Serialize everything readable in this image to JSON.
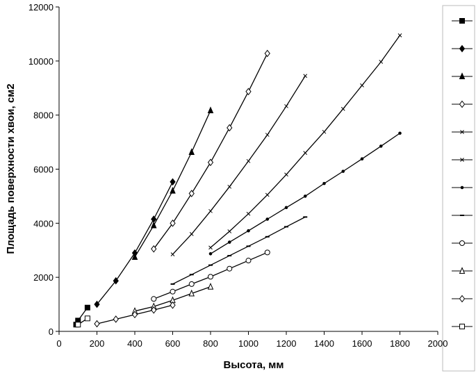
{
  "chart_data": {
    "type": "line",
    "x_label": "Высота, мм",
    "y_label": "Площадь поверхности хвои, см2",
    "xlim": [
      0,
      2000
    ],
    "xticks": [
      0,
      200,
      400,
      600,
      800,
      1000,
      1200,
      1400,
      1600,
      1800,
      2000
    ],
    "ylim": [
      0,
      12000
    ],
    "yticks": [
      0,
      2000,
      4000,
      6000,
      8000,
      10000,
      12000
    ],
    "grid": false,
    "legend": "right",
    "series": [
      {
        "color": "#000000",
        "marker": "square-filled",
        "x": [
          90,
          100,
          150
        ],
        "values": [
          250,
          400,
          880
        ]
      },
      {
        "color": "#000000",
        "marker": "diamond-filled",
        "x": [
          200,
          300,
          400,
          500,
          600
        ],
        "values": [
          1000,
          1870,
          2900,
          4150,
          5530
        ]
      },
      {
        "color": "#000000",
        "marker": "triangle-filled",
        "x": [
          400,
          500,
          600,
          700,
          800
        ],
        "values": [
          2750,
          3920,
          5200,
          6630,
          8170
        ]
      },
      {
        "color": "#000000",
        "marker": "diamond-open",
        "x": [
          500,
          600,
          700,
          800,
          900,
          1000,
          1100
        ],
        "values": [
          3050,
          4000,
          5100,
          6250,
          7530,
          8870,
          10280
        ]
      },
      {
        "color": "#000000",
        "marker": "cross",
        "x": [
          600,
          700,
          800,
          900,
          1000,
          1100,
          1200,
          1300
        ],
        "values": [
          2850,
          3600,
          4450,
          5350,
          6300,
          7270,
          8330,
          9450
        ]
      },
      {
        "color": "#000000",
        "marker": "cross",
        "x": [
          800,
          900,
          1000,
          1100,
          1200,
          1300,
          1400,
          1500,
          1600,
          1700,
          1800
        ],
        "values": [
          3100,
          3700,
          4350,
          5050,
          5800,
          6600,
          7380,
          8230,
          9100,
          9970,
          10950
        ]
      },
      {
        "color": "#000000",
        "marker": "dot",
        "x": [
          800,
          900,
          1000,
          1100,
          1200,
          1300,
          1400,
          1500,
          1600,
          1700,
          1800
        ],
        "values": [
          2870,
          3300,
          3720,
          4150,
          4580,
          5000,
          5470,
          5920,
          6380,
          6850,
          7330
        ]
      },
      {
        "color": "#000000",
        "marker": "dash",
        "x": [
          600,
          700,
          800,
          900,
          1000,
          1100,
          1200,
          1300
        ],
        "values": [
          1750,
          2100,
          2450,
          2800,
          3150,
          3500,
          3870,
          4230
        ]
      },
      {
        "color": "#000000",
        "marker": "circle-open",
        "x": [
          500,
          600,
          700,
          800,
          900,
          1000,
          1100
        ],
        "values": [
          1200,
          1470,
          1750,
          2020,
          2320,
          2620,
          2920
        ]
      },
      {
        "color": "#000000",
        "marker": "triangle-open",
        "x": [
          400,
          500,
          600,
          700,
          800
        ],
        "values": [
          750,
          920,
          1150,
          1400,
          1650
        ]
      },
      {
        "color": "#000000",
        "marker": "diamond-open",
        "x": [
          200,
          300,
          400,
          500,
          600
        ],
        "values": [
          280,
          450,
          620,
          790,
          970
        ]
      },
      {
        "color": "#000000",
        "marker": "square-open",
        "x": [
          100,
          150
        ],
        "values": [
          250,
          480
        ]
      }
    ]
  }
}
